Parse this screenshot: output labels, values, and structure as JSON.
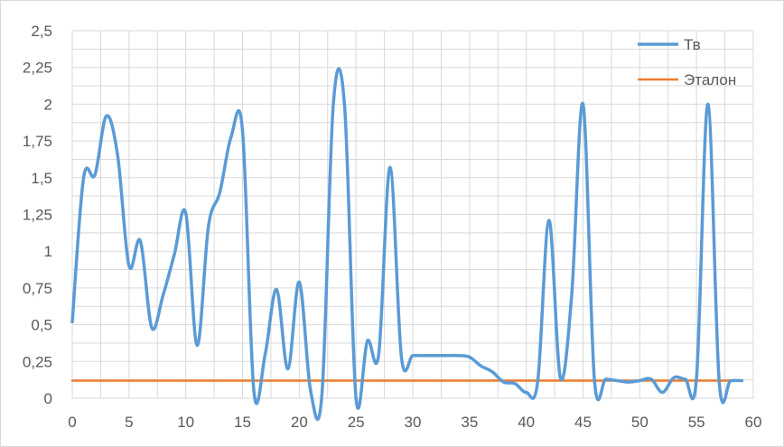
{
  "chart_data": {
    "type": "line",
    "title": "",
    "xlabel": "",
    "ylabel": "",
    "xlim": [
      0,
      60
    ],
    "ylim": [
      0,
      2.5
    ],
    "x_ticks": [
      "0",
      "5",
      "10",
      "15",
      "20",
      "25",
      "30",
      "35",
      "40",
      "45",
      "50",
      "55",
      "60"
    ],
    "y_ticks": [
      "0",
      "0,25",
      "0,5",
      "0,75",
      "1",
      "1,25",
      "1,5",
      "1,75",
      "2",
      "2,25",
      "2,5"
    ],
    "grid": true,
    "legend_position": "top-right",
    "series": [
      {
        "name": "Тв",
        "color": "#5b9bd5",
        "x": [
          0,
          1,
          2,
          3,
          4,
          5,
          6,
          7,
          8,
          9,
          10,
          11,
          12,
          13,
          14,
          15,
          16,
          17,
          18,
          19,
          20,
          21,
          22,
          23,
          24,
          25,
          26,
          27,
          28,
          29,
          30,
          31,
          32,
          33,
          34,
          35,
          36,
          37,
          38,
          39,
          40,
          41,
          42,
          43,
          44,
          45,
          46,
          47,
          48,
          49,
          50,
          51,
          52,
          53,
          54,
          55,
          56,
          57,
          58,
          59
        ],
        "values": [
          0.52,
          1.5,
          1.52,
          1.92,
          1.65,
          0.9,
          1.07,
          0.48,
          0.7,
          0.98,
          1.26,
          0.36,
          1.17,
          1.4,
          1.78,
          1.82,
          0.05,
          0.3,
          0.74,
          0.2,
          0.79,
          0.05,
          0.03,
          2.0,
          1.98,
          0.0,
          0.39,
          0.3,
          1.57,
          0.28,
          0.29,
          0.29,
          0.29,
          0.29,
          0.29,
          0.28,
          0.22,
          0.18,
          0.11,
          0.1,
          0.04,
          0.11,
          1.21,
          0.14,
          0.7,
          2.0,
          0.13,
          0.13,
          0.12,
          0.11,
          0.12,
          0.13,
          0.04,
          0.14,
          0.13,
          0.14,
          2.0,
          0.11,
          0.12,
          0.12
        ]
      },
      {
        "name": "Эталон",
        "color": "#ed7d31",
        "x": [
          0,
          59
        ],
        "values": [
          0.12,
          0.12
        ]
      }
    ]
  }
}
